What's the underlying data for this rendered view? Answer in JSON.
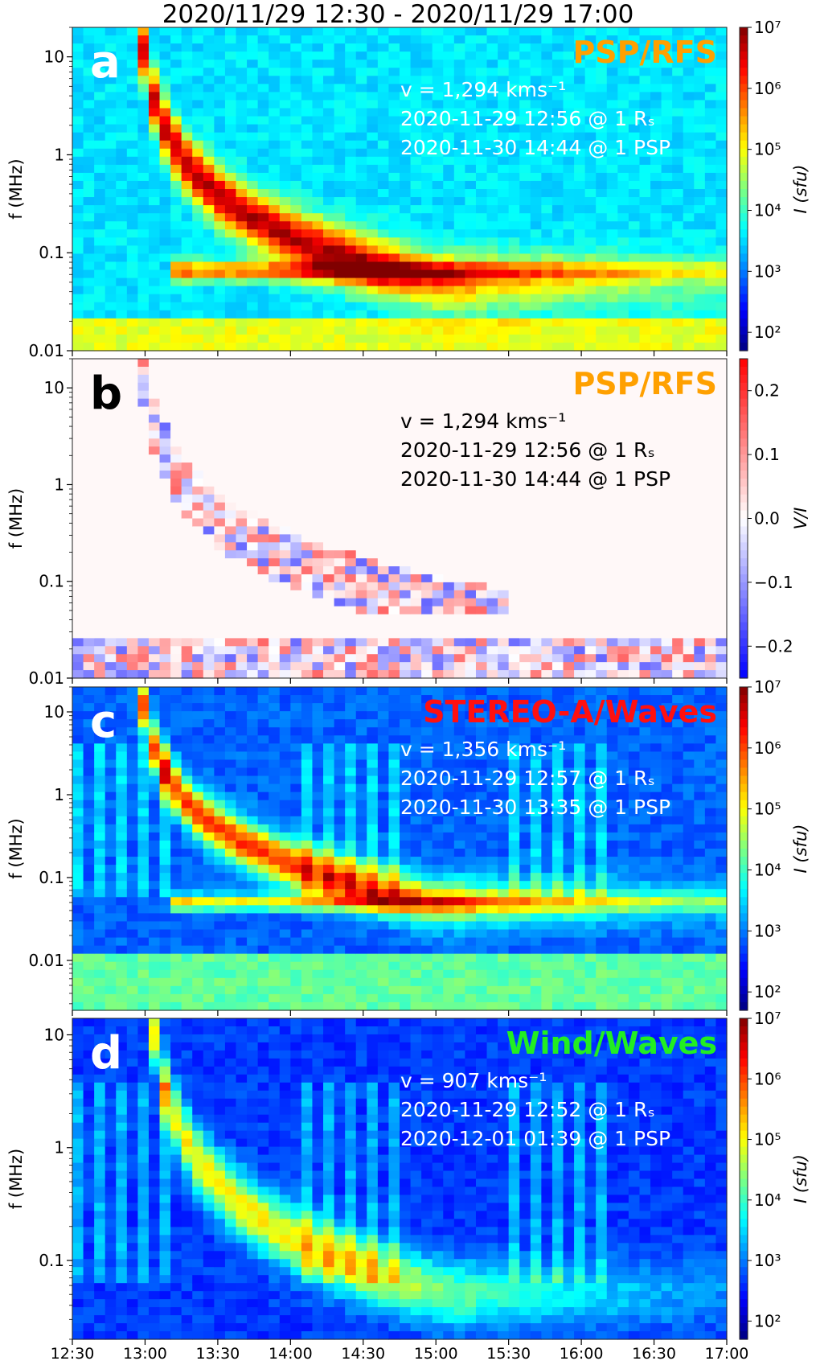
{
  "title": "2020/11/29 12:30 - 2020/11/29 17:00",
  "colors": {
    "orange": "#ffa000",
    "red": "#ff1010",
    "green": "#22ee22",
    "white": "#ffffff",
    "black": "#000000"
  },
  "chart_data": [
    {
      "type": "heatmap",
      "panel": "a",
      "instrument": "PSP/RFS",
      "instrument_color": "orange",
      "label_color": "white",
      "annotations": [
        "v = 1,294 kms⁻¹",
        "2020-11-29 12:56 @ 1 Rₛ",
        "2020-11-30 14:44 @ 1 PSP"
      ],
      "ylabel": "f (MHz)",
      "yscale": "log",
      "ylim": [
        0.01,
        20
      ],
      "yticks": [
        "0.01",
        "0.1",
        "1",
        "10"
      ],
      "colorbar": {
        "label": "I (sfu)",
        "scale": "log",
        "range": [
          50,
          10000000
        ],
        "ticks": [
          "10²",
          "10³",
          "10⁴",
          "10⁵",
          "10⁶",
          "10⁷"
        ]
      }
    },
    {
      "type": "heatmap",
      "panel": "b",
      "instrument": "PSP/RFS",
      "instrument_color": "orange",
      "label_color": "black",
      "annotations": [
        "v = 1,294 kms⁻¹",
        "2020-11-29 12:56 @ 1 Rₛ",
        "2020-11-30 14:44 @ 1 PSP"
      ],
      "ylabel": "f (MHz)",
      "yscale": "log",
      "ylim": [
        0.01,
        20
      ],
      "yticks": [
        "0.01",
        "0.1",
        "1",
        "10"
      ],
      "colorbar": {
        "label": "V/I",
        "scale": "linear",
        "range": [
          -0.25,
          0.25
        ],
        "ticks": [
          "0.2",
          "0.1",
          "0.0",
          "−0.1",
          "−0.2"
        ]
      }
    },
    {
      "type": "heatmap",
      "panel": "c",
      "instrument": "STEREO-A/Waves",
      "instrument_color": "red",
      "label_color": "white",
      "annotations": [
        "v = 1,356 kms⁻¹",
        "2020-11-29 12:57 @ 1 Rₛ",
        "2020-11-30 13:35 @ 1 PSP"
      ],
      "ylabel": "f (MHz)",
      "yscale": "log",
      "ylim": [
        0.0025,
        20
      ],
      "yticks": [
        "0.01",
        "0.1",
        "1",
        "10"
      ],
      "colorbar": {
        "label": "I (sfu)",
        "scale": "log",
        "range": [
          50,
          10000000
        ],
        "ticks": [
          "10²",
          "10³",
          "10⁴",
          "10⁵",
          "10⁶",
          "10⁷"
        ]
      }
    },
    {
      "type": "heatmap",
      "panel": "d",
      "instrument": "Wind/Waves",
      "instrument_color": "green",
      "label_color": "white",
      "annotations": [
        "v = 907 kms⁻¹",
        "2020-11-29 12:52 @ 1 Rₛ",
        "2020-12-01 01:39 @ 1 PSP"
      ],
      "ylabel": "f (MHz)",
      "yscale": "log",
      "ylim": [
        0.02,
        14
      ],
      "yticks": [
        "0.1",
        "1",
        "10"
      ],
      "colorbar": {
        "label": "I (sfu)",
        "scale": "log",
        "range": [
          50,
          10000000
        ],
        "ticks": [
          "10²",
          "10³",
          "10⁴",
          "10⁵",
          "10⁶",
          "10⁷"
        ]
      }
    }
  ],
  "xaxis": {
    "range": [
      "12:30",
      "17:00"
    ],
    "ticks": [
      "12:30",
      "13:00",
      "13:30",
      "14:00",
      "14:30",
      "15:00",
      "15:30",
      "16:00",
      "16:30",
      "17:00"
    ]
  }
}
